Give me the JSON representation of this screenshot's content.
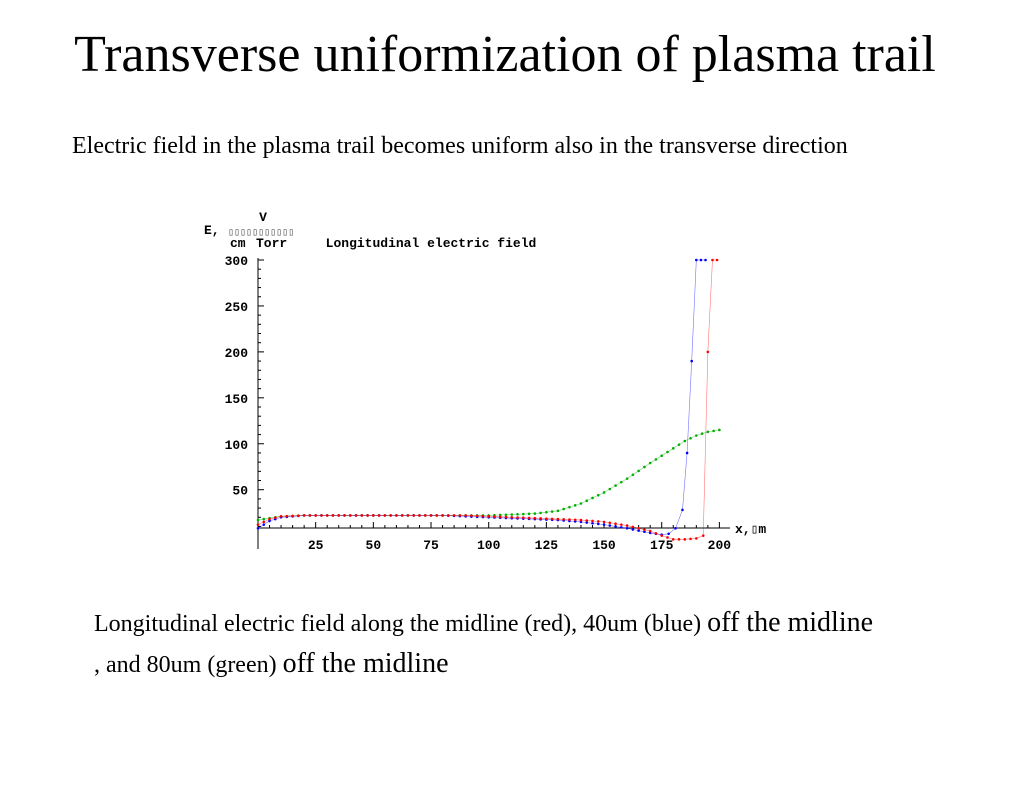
{
  "page": {
    "title": "Transverse uniformization of plasma trail",
    "intro": "Electric field in the plasma trail becomes uniform also in the transverse direction",
    "caption": {
      "part1": "Longitudinal electric field along the midline (red),  40um (blue) ",
      "part2": "off the midline",
      "part3": " , and 80um (green) ",
      "part4": "off the midline"
    }
  },
  "chart_data": {
    "type": "scatter",
    "title": "Longitudinal electric field",
    "ylabel_prefix": "E,",
    "ylabel_units": {
      "num": "V",
      "den_left": "cm",
      "den_right": "Torr",
      "glyphs": "▯▯▯▯▯▯▯▯▯▯▯"
    },
    "xlabel": "x,▯m",
    "xlim": [
      0,
      202
    ],
    "ylim": [
      -8,
      300
    ],
    "x_ticks": [
      "25",
      "50",
      "75",
      "100",
      "125",
      "150",
      "175",
      "200"
    ],
    "y_ticks": [
      "50",
      "100",
      "150",
      "200",
      "250",
      "300"
    ],
    "colors": {
      "red": "#ff0000",
      "blue": "#0000ff",
      "green": "#00b000"
    },
    "series": [
      {
        "color": "green",
        "x": [
          0,
          5,
          10,
          20,
          30,
          40,
          50,
          60,
          70,
          80,
          90,
          100,
          110,
          120,
          130,
          140,
          150,
          160,
          170,
          180,
          185,
          190,
          195,
          200
        ],
        "y": [
          17,
          19,
          21,
          22,
          22,
          22,
          22,
          22,
          22,
          22,
          22,
          22,
          23,
          24,
          27,
          35,
          47,
          62,
          79,
          95,
          103,
          109,
          113,
          115
        ]
      },
      {
        "color": "blue",
        "x": [
          0,
          5,
          10,
          20,
          30,
          40,
          50,
          60,
          70,
          80,
          90,
          100,
          110,
          120,
          130,
          140,
          150,
          160,
          170,
          175,
          178,
          181,
          184,
          186,
          188,
          190,
          192,
          194
        ],
        "y": [
          8,
          16,
          20,
          22,
          22,
          22,
          22,
          22,
          22,
          22,
          21,
          20,
          19,
          18,
          17,
          15,
          12,
          8,
          3,
          1,
          2,
          8,
          28,
          90,
          190,
          300,
          300,
          300
        ]
      },
      {
        "color": "red",
        "x": [
          0,
          5,
          10,
          20,
          30,
          40,
          50,
          60,
          70,
          80,
          90,
          100,
          110,
          120,
          130,
          140,
          150,
          160,
          170,
          175,
          180,
          185,
          190,
          193,
          195,
          197,
          199
        ],
        "y": [
          12,
          18,
          21,
          22,
          22,
          22,
          22,
          22,
          22,
          22,
          22,
          21,
          20,
          19,
          18,
          17,
          15,
          11,
          5,
          0,
          -4,
          -4,
          -3,
          0,
          200,
          300,
          300
        ]
      }
    ]
  }
}
